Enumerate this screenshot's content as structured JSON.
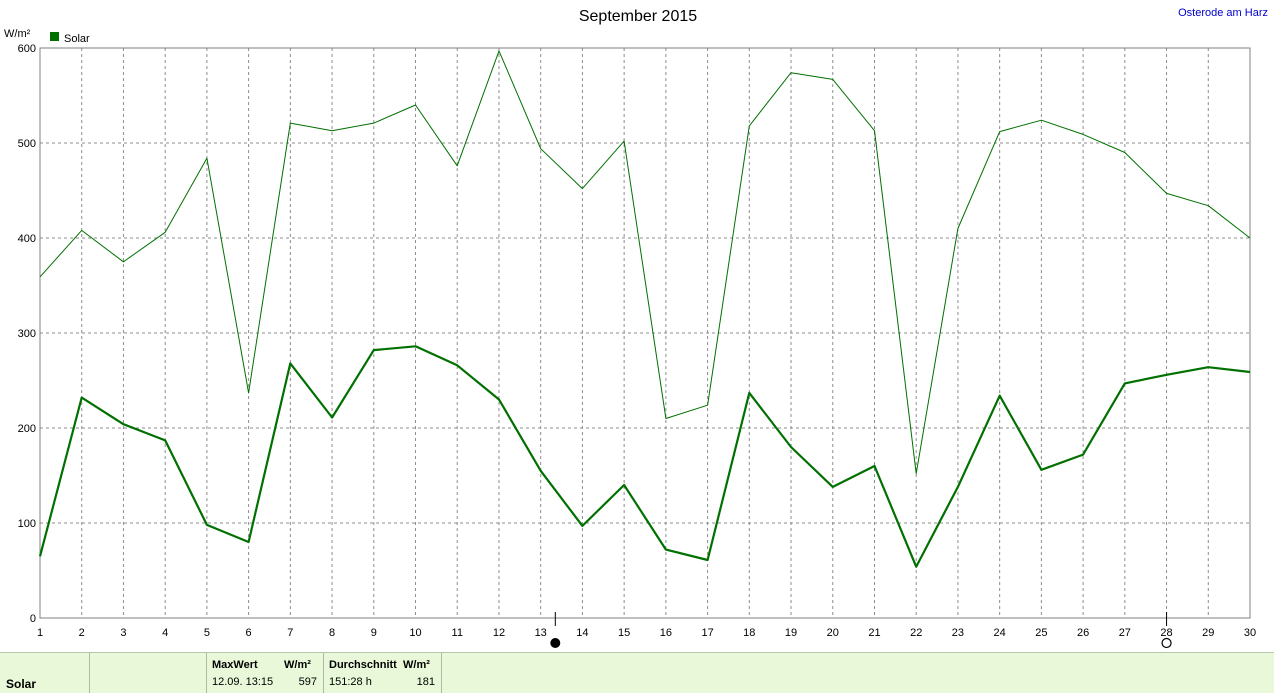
{
  "station": "Osterode am Harz",
  "chart_data": {
    "type": "line",
    "title": "September 2015",
    "ylabel": "W/m²",
    "ylim": [
      0,
      600
    ],
    "yticks": [
      0,
      100,
      200,
      300,
      400,
      500,
      600
    ],
    "xlim": [
      1,
      30
    ],
    "x": [
      1,
      2,
      3,
      4,
      5,
      6,
      7,
      8,
      9,
      10,
      11,
      12,
      13,
      14,
      15,
      16,
      17,
      18,
      19,
      20,
      21,
      22,
      23,
      24,
      25,
      26,
      27,
      28,
      29,
      30
    ],
    "legend": {
      "position": "top-left",
      "entries": [
        "Solar"
      ]
    },
    "grid": true,
    "colors": {
      "series": "#007000"
    },
    "series": [
      {
        "name": "Solar",
        "role": "daily average",
        "values": [
          65,
          232,
          204,
          187,
          98,
          80,
          268,
          211,
          282,
          286,
          266,
          230,
          155,
          97,
          140,
          72,
          61,
          237,
          180,
          138,
          160,
          54,
          138,
          234,
          156,
          172,
          247,
          256,
          264,
          259
        ]
      },
      {
        "role": "daily maximum",
        "values": [
          359,
          408,
          375,
          406,
          484,
          237,
          521,
          513,
          521,
          540,
          476,
          597,
          494,
          452,
          502,
          210,
          224,
          518,
          574,
          567,
          513,
          152,
          410,
          512,
          524,
          509,
          490,
          447,
          434,
          400
        ]
      }
    ],
    "markers": [
      {
        "day": 13.35,
        "symbol": "new-moon-icon"
      },
      {
        "day": 28.0,
        "symbol": "full-moon-icon"
      }
    ]
  },
  "footer": {
    "label": "Solar",
    "max_header": "MaxWert",
    "max_unit": "W/m²",
    "max_when": "12.09.  13:15",
    "max_value": "597",
    "avg_header": "Durchschnitt",
    "avg_unit": "W/m²",
    "avg_duration": "151:28 h",
    "avg_value": "181"
  }
}
